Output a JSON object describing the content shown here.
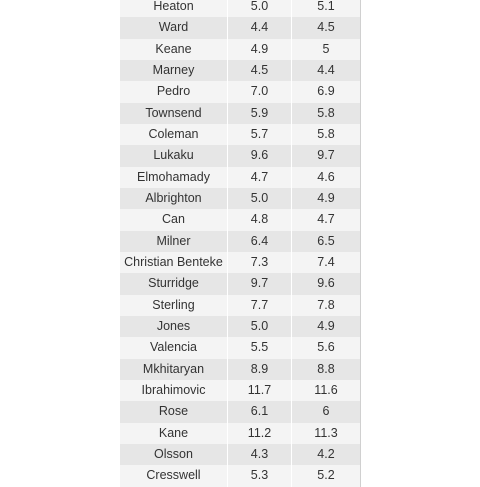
{
  "table": {
    "rows": [
      {
        "name": "Heaton",
        "v1": "5.0",
        "v2": "5.1"
      },
      {
        "name": "Ward",
        "v1": "4.4",
        "v2": "4.5"
      },
      {
        "name": "Keane",
        "v1": "4.9",
        "v2": "5"
      },
      {
        "name": "Marney",
        "v1": "4.5",
        "v2": "4.4"
      },
      {
        "name": "Pedro",
        "v1": "7.0",
        "v2": "6.9"
      },
      {
        "name": "Townsend",
        "v1": "5.9",
        "v2": "5.8"
      },
      {
        "name": "Coleman",
        "v1": "5.7",
        "v2": "5.8"
      },
      {
        "name": "Lukaku",
        "v1": "9.6",
        "v2": "9.7"
      },
      {
        "name": "Elmohamady",
        "v1": "4.7",
        "v2": "4.6"
      },
      {
        "name": "Albrighton",
        "v1": "5.0",
        "v2": "4.9"
      },
      {
        "name": "Can",
        "v1": "4.8",
        "v2": "4.7"
      },
      {
        "name": "Milner",
        "v1": "6.4",
        "v2": "6.5"
      },
      {
        "name": "Christian Benteke",
        "v1": "7.3",
        "v2": "7.4"
      },
      {
        "name": "Sturridge",
        "v1": "9.7",
        "v2": "9.6"
      },
      {
        "name": "Sterling",
        "v1": "7.7",
        "v2": "7.8"
      },
      {
        "name": "Jones",
        "v1": "5.0",
        "v2": "4.9"
      },
      {
        "name": "Valencia",
        "v1": "5.5",
        "v2": "5.6"
      },
      {
        "name": "Mkhitaryan",
        "v1": "8.9",
        "v2": "8.8"
      },
      {
        "name": "Ibrahimovic",
        "v1": "11.7",
        "v2": "11.6"
      },
      {
        "name": "Rose",
        "v1": "6.1",
        "v2": "6"
      },
      {
        "name": "Kane",
        "v1": "11.2",
        "v2": "11.3"
      },
      {
        "name": "Olsson",
        "v1": "4.3",
        "v2": "4.2"
      },
      {
        "name": "Cresswell",
        "v1": "5.3",
        "v2": "5.2"
      }
    ]
  }
}
